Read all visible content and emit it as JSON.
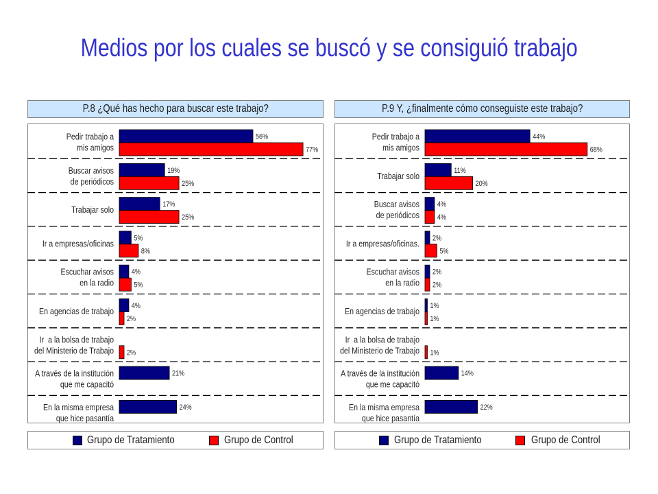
{
  "title": "Medios por los cuales se buscó y se consiguió trabajo",
  "colors": {
    "title": "#3333cc",
    "header_background": "#cce6ff"
  },
  "chart_data": [
    {
      "type": "bar",
      "orientation": "horizontal",
      "title": "P.8 ¿Qué has hecho para buscar este trabajo?",
      "categories": [
        [
          "Pedir trabajo a",
          "mis amigos"
        ],
        [
          "Buscar avisos",
          "de periódicos"
        ],
        [
          "Trabajar solo"
        ],
        [
          "Ir a empresas/oficinas"
        ],
        [
          "Escuchar avisos",
          "en la radio"
        ],
        [
          "En agencias de trabajo"
        ],
        [
          "Ir  a la bolsa de trabajo",
          "del Ministerio de Trabajo"
        ],
        [
          "A través de la institución",
          "que me capacitó"
        ],
        [
          "En la misma empresa",
          "que hice pasantía"
        ]
      ],
      "series": [
        {
          "name": "Grupo de Tratamiento",
          "color": "#000080",
          "values": [
            56,
            19,
            17,
            5,
            4,
            4,
            null,
            21,
            24
          ],
          "labels": [
            "56%",
            "19%",
            "17%",
            "5%",
            "4%",
            "4%",
            null,
            "21%",
            "24%"
          ]
        },
        {
          "name": "Grupo de Control",
          "color": "#ff0000",
          "values": [
            77,
            25,
            25,
            8,
            5,
            2,
            2,
            null,
            null
          ],
          "labels": [
            "77%",
            "25%",
            "25%",
            "8%",
            "5%",
            "2%",
            "2%",
            null,
            null
          ]
        }
      ],
      "xlim": [
        0,
        85
      ],
      "axis_visible": false,
      "legend": "bottom"
    },
    {
      "type": "bar",
      "orientation": "horizontal",
      "title": "P.9 Y, ¿finalmente cómo conseguiste este trabajo?",
      "categories": [
        [
          "Pedir trabajo a",
          "mis amigos"
        ],
        [
          "Trabajar solo"
        ],
        [
          "Buscar avisos",
          "de periódicos"
        ],
        [
          "Ir a empresas/oficinas."
        ],
        [
          "Escuchar avisos",
          "en la radio"
        ],
        [
          "En agencias de trabajo"
        ],
        [
          "Ir  a la bolsa de trabajo",
          "del Ministerio de Trabajo"
        ],
        [
          "A través de la institución",
          "que me capacitó"
        ],
        [
          "En la misma empresa",
          "que hice pasantía"
        ]
      ],
      "series": [
        {
          "name": "Grupo de Tratamiento",
          "color": "#000080",
          "values": [
            44,
            11,
            4,
            2,
            2,
            1,
            null,
            14,
            22
          ],
          "labels": [
            "44%",
            "11%",
            "4%",
            "2%",
            "2%",
            "1%",
            null,
            "14%",
            "22%"
          ]
        },
        {
          "name": "Grupo de Control",
          "color": "#ff0000",
          "values": [
            68,
            20,
            4,
            5,
            2,
            1,
            1,
            null,
            null
          ],
          "labels": [
            "68%",
            "20%",
            "4%",
            "5%",
            "2%",
            "1%",
            "1%",
            null,
            null
          ]
        }
      ],
      "xlim": [
        0,
        85
      ],
      "axis_visible": false,
      "legend": "bottom"
    }
  ]
}
